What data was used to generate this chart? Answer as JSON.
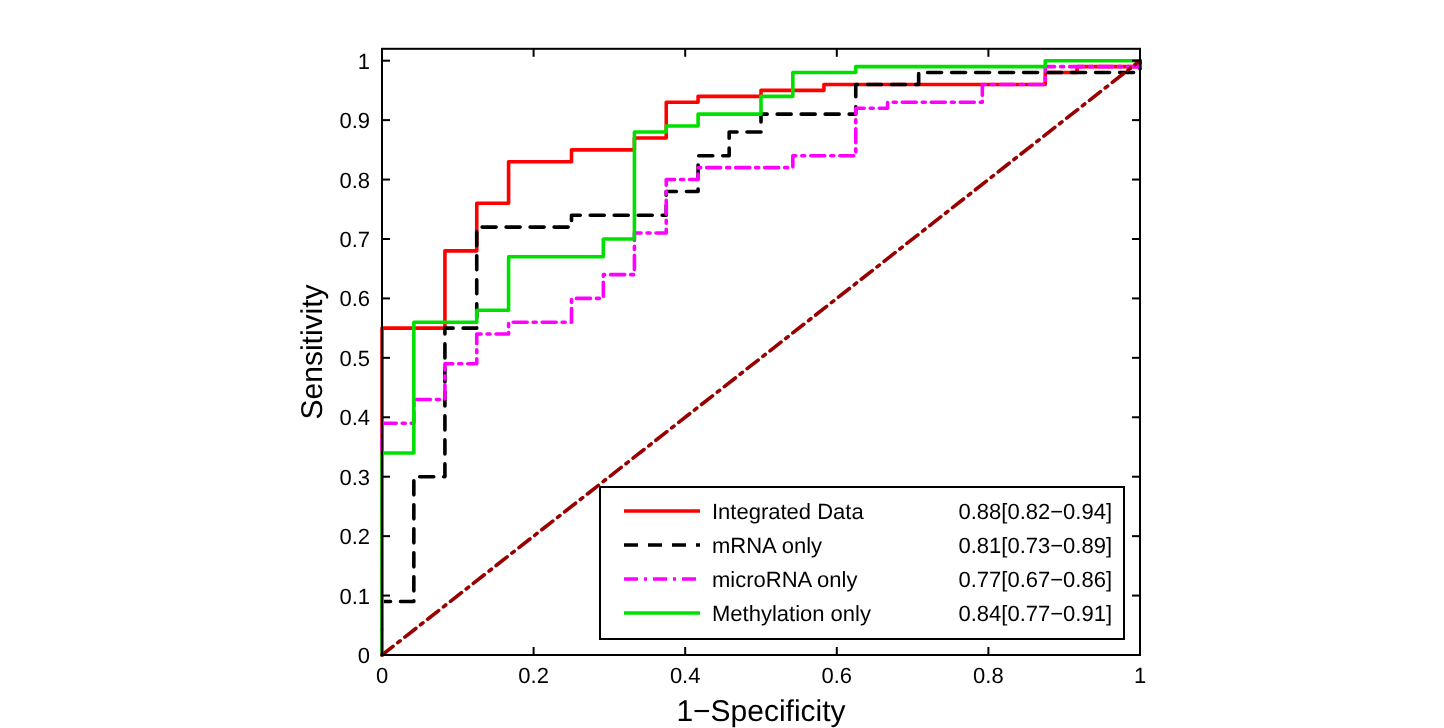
{
  "chart_data": {
    "type": "line",
    "xlabel": "1−Specificity",
    "ylabel": "Sensitivity",
    "xlim": [
      0,
      1
    ],
    "ylim": [
      0,
      1.02
    ],
    "xticks": [
      0,
      0.2,
      0.4,
      0.6,
      0.8,
      1
    ],
    "yticks": [
      0,
      0.1,
      0.2,
      0.3,
      0.4,
      0.5,
      0.6,
      0.7,
      0.8,
      0.9,
      1
    ],
    "grid": false,
    "legend": "bottom right",
    "annotations": [
      "0.88[0.82−0.94]",
      "0.81[0.73−0.89]",
      "0.77[0.67−0.86]",
      "0.84[0.77−0.91]"
    ],
    "series": [
      {
        "name": "Integrated Data",
        "color": "#ff0000",
        "line_style": "solid",
        "x": [
          0,
          0,
          0.083,
          0.083,
          0.125,
          0.125,
          0.167,
          0.167,
          0.25,
          0.25,
          0.333,
          0.333,
          0.375,
          0.375,
          0.417,
          0.417,
          0.5,
          0.5,
          0.583,
          0.583,
          0.875,
          0.875,
          0.917,
          0.917,
          1,
          1
        ],
        "values": [
          0,
          0.55,
          0.55,
          0.68,
          0.68,
          0.76,
          0.76,
          0.83,
          0.83,
          0.85,
          0.85,
          0.87,
          0.87,
          0.93,
          0.93,
          0.94,
          0.94,
          0.95,
          0.95,
          0.96,
          0.96,
          0.98,
          0.98,
          0.99,
          0.99,
          1
        ]
      },
      {
        "name": "mRNA only",
        "color": "#000000",
        "line_style": "dashed",
        "x": [
          0,
          0,
          0.042,
          0.042,
          0.083,
          0.083,
          0.125,
          0.125,
          0.25,
          0.25,
          0.375,
          0.375,
          0.417,
          0.417,
          0.458,
          0.458,
          0.5,
          0.5,
          0.625,
          0.625,
          0.708,
          0.708,
          1,
          1
        ],
        "values": [
          0,
          0.09,
          0.09,
          0.3,
          0.3,
          0.55,
          0.55,
          0.72,
          0.72,
          0.74,
          0.74,
          0.78,
          0.78,
          0.84,
          0.84,
          0.88,
          0.88,
          0.91,
          0.91,
          0.96,
          0.96,
          0.98,
          0.98,
          1
        ]
      },
      {
        "name": "microRNA only",
        "color": "#ff00ff",
        "line_style": "dashdot",
        "x": [
          0,
          0,
          0.042,
          0.042,
          0.083,
          0.083,
          0.125,
          0.125,
          0.167,
          0.167,
          0.25,
          0.25,
          0.292,
          0.292,
          0.333,
          0.333,
          0.375,
          0.375,
          0.417,
          0.417,
          0.542,
          0.542,
          0.625,
          0.625,
          0.667,
          0.667,
          0.792,
          0.792,
          0.875,
          0.875,
          1,
          1
        ],
        "values": [
          0,
          0.39,
          0.39,
          0.43,
          0.43,
          0.49,
          0.49,
          0.54,
          0.54,
          0.56,
          0.56,
          0.6,
          0.6,
          0.64,
          0.64,
          0.71,
          0.71,
          0.8,
          0.8,
          0.82,
          0.82,
          0.84,
          0.84,
          0.92,
          0.92,
          0.93,
          0.93,
          0.96,
          0.96,
          0.99,
          0.99,
          1
        ]
      },
      {
        "name": "Methylation only",
        "color": "#00e000",
        "line_style": "solid",
        "x": [
          0,
          0,
          0.042,
          0.042,
          0.125,
          0.125,
          0.167,
          0.167,
          0.292,
          0.292,
          0.333,
          0.333,
          0.375,
          0.375,
          0.417,
          0.417,
          0.5,
          0.5,
          0.542,
          0.542,
          0.625,
          0.625,
          0.875,
          0.875,
          1,
          1
        ],
        "values": [
          0,
          0.34,
          0.34,
          0.56,
          0.56,
          0.58,
          0.58,
          0.67,
          0.67,
          0.7,
          0.7,
          0.88,
          0.88,
          0.89,
          0.89,
          0.91,
          0.91,
          0.94,
          0.94,
          0.98,
          0.98,
          0.99,
          0.99,
          1,
          1,
          1
        ]
      },
      {
        "color": "#990000",
        "line_style": "dashdot",
        "x": [
          0,
          1
        ],
        "values": [
          0,
          1
        ]
      }
    ]
  }
}
